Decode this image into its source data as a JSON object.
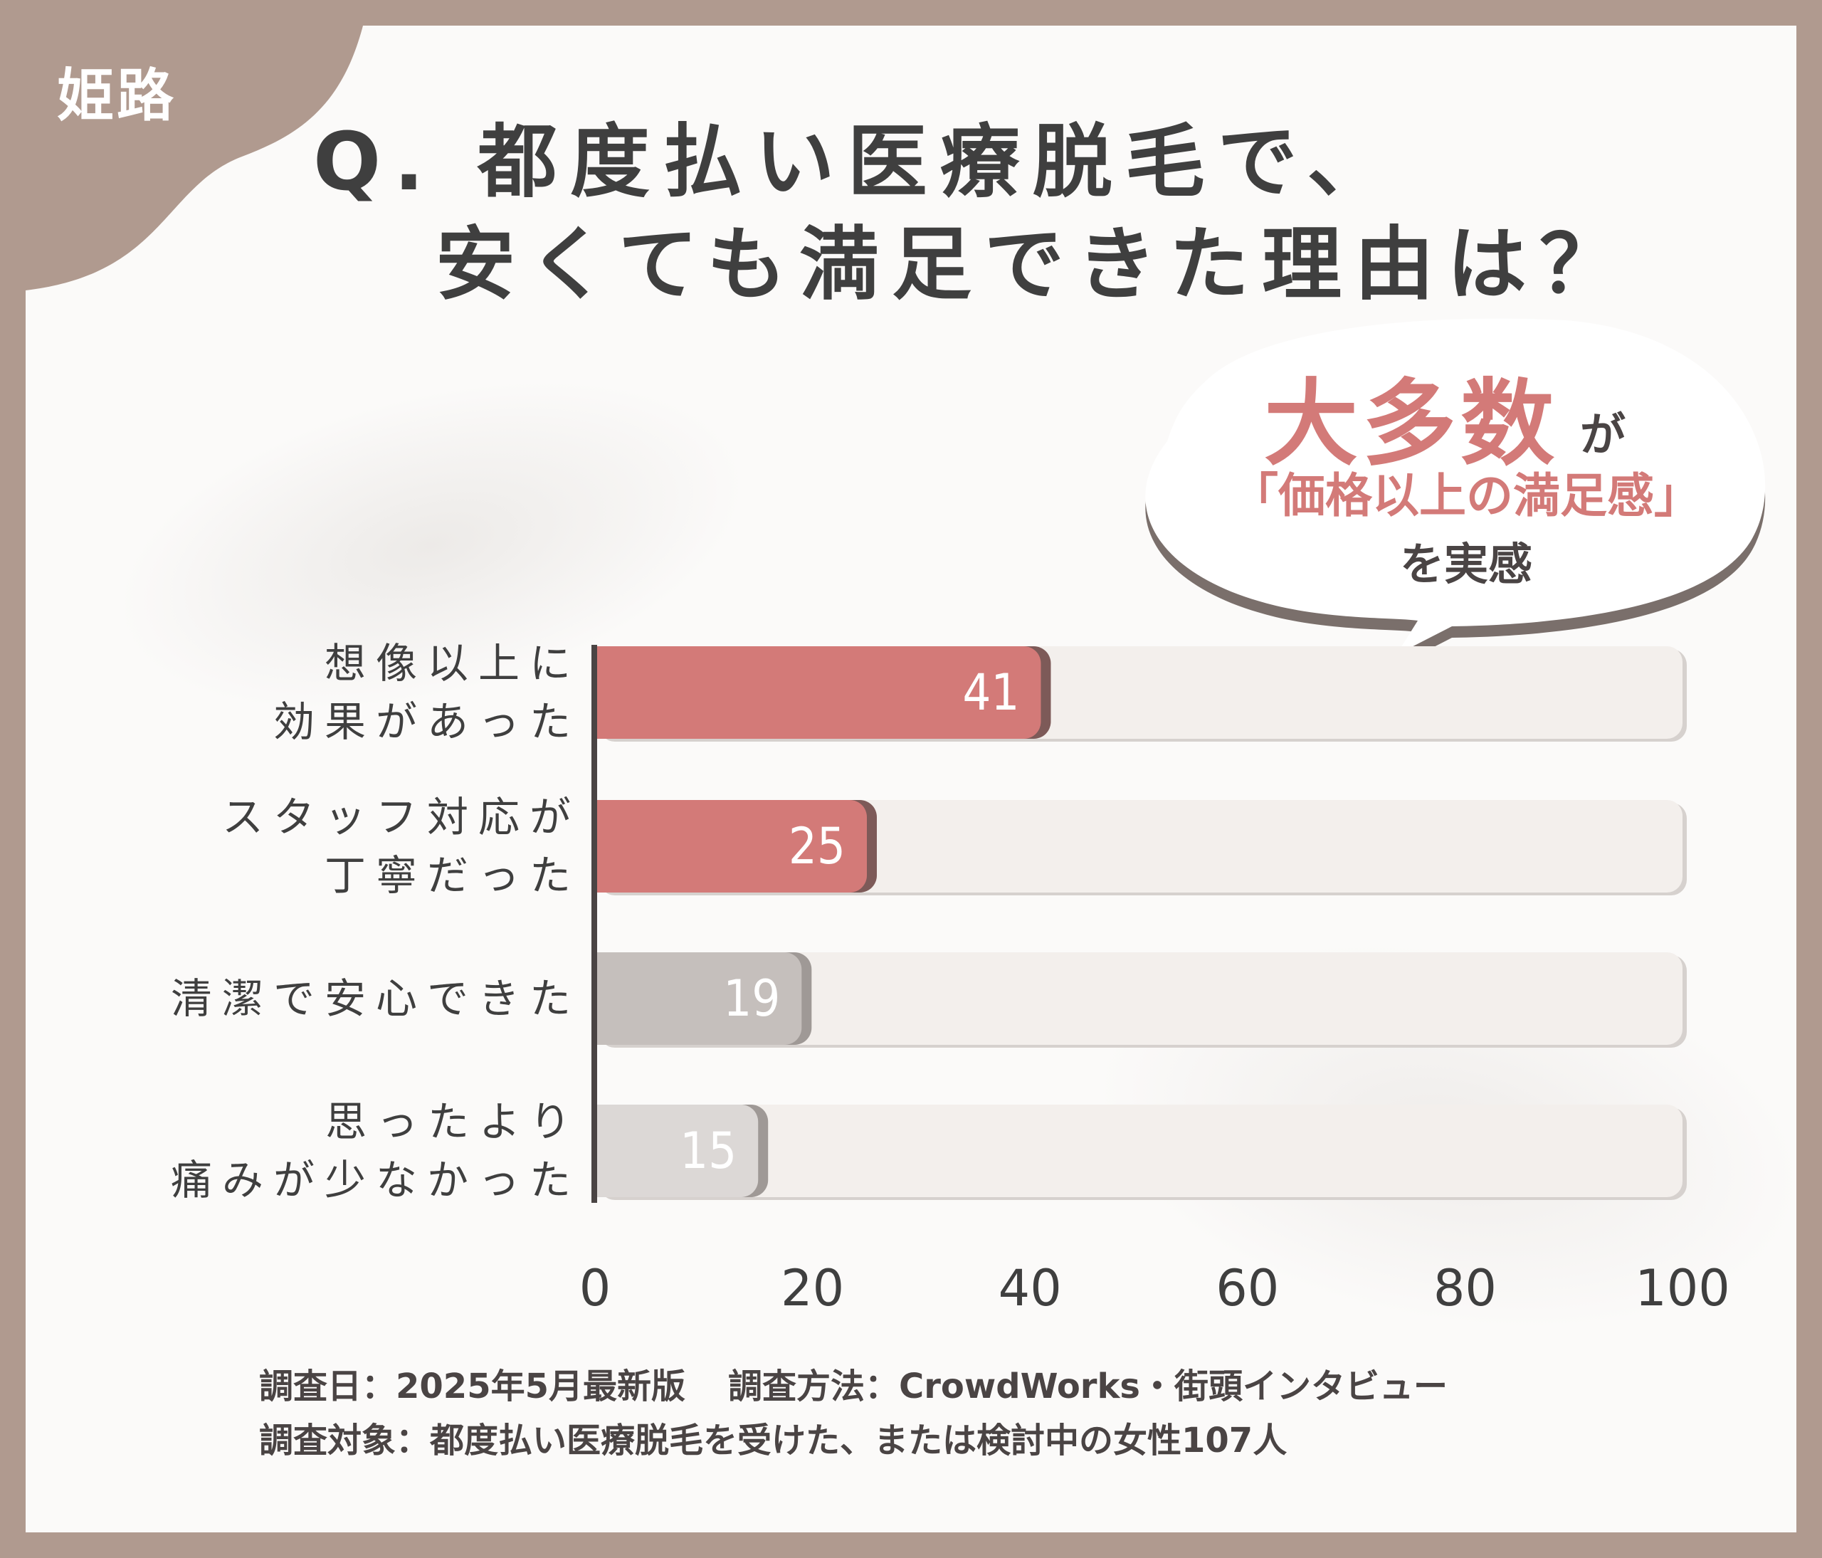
{
  "badge": {
    "city": "姫路"
  },
  "header": {
    "title_line1": "Q. 都度払い医療脱毛で、",
    "title_line2": "安くても満足できた理由は？"
  },
  "callout": {
    "big": "大多数",
    "particle": "が",
    "middle": "「価格以上の満足感」",
    "bottom": "を実感"
  },
  "chart_data": {
    "type": "bar",
    "orientation": "horizontal",
    "categories": [
      [
        "想像以上に",
        "効果があった"
      ],
      [
        "スタッフ対応が",
        "丁寧だった"
      ],
      [
        "清潔で安心できた"
      ],
      [
        "思ったより",
        "痛みが少なかった"
      ]
    ],
    "values": [
      41,
      25,
      19,
      15
    ],
    "xlim": [
      0,
      100
    ],
    "xticks": [
      "0",
      "20",
      "40",
      "60",
      "80",
      "100"
    ],
    "grid": false,
    "colors": {
      "highlight": "#d37a78",
      "highlight_shadow": "#7d5a58",
      "gray1": "#c5bfbc",
      "gray2": "#dcd8d6",
      "gray_shadow": "#9f9996",
      "track": "#f3efec",
      "track_shadow": "#d6d1ce",
      "axis": "#4a4444"
    }
  },
  "footer": {
    "date_label": "調査日：2025年5月最新版",
    "method_label": "調査方法：CrowdWorks・街頭インタビュー",
    "target_label": "調査対象：都度払い医療脱毛を受けた、または検討中の女性107人"
  }
}
